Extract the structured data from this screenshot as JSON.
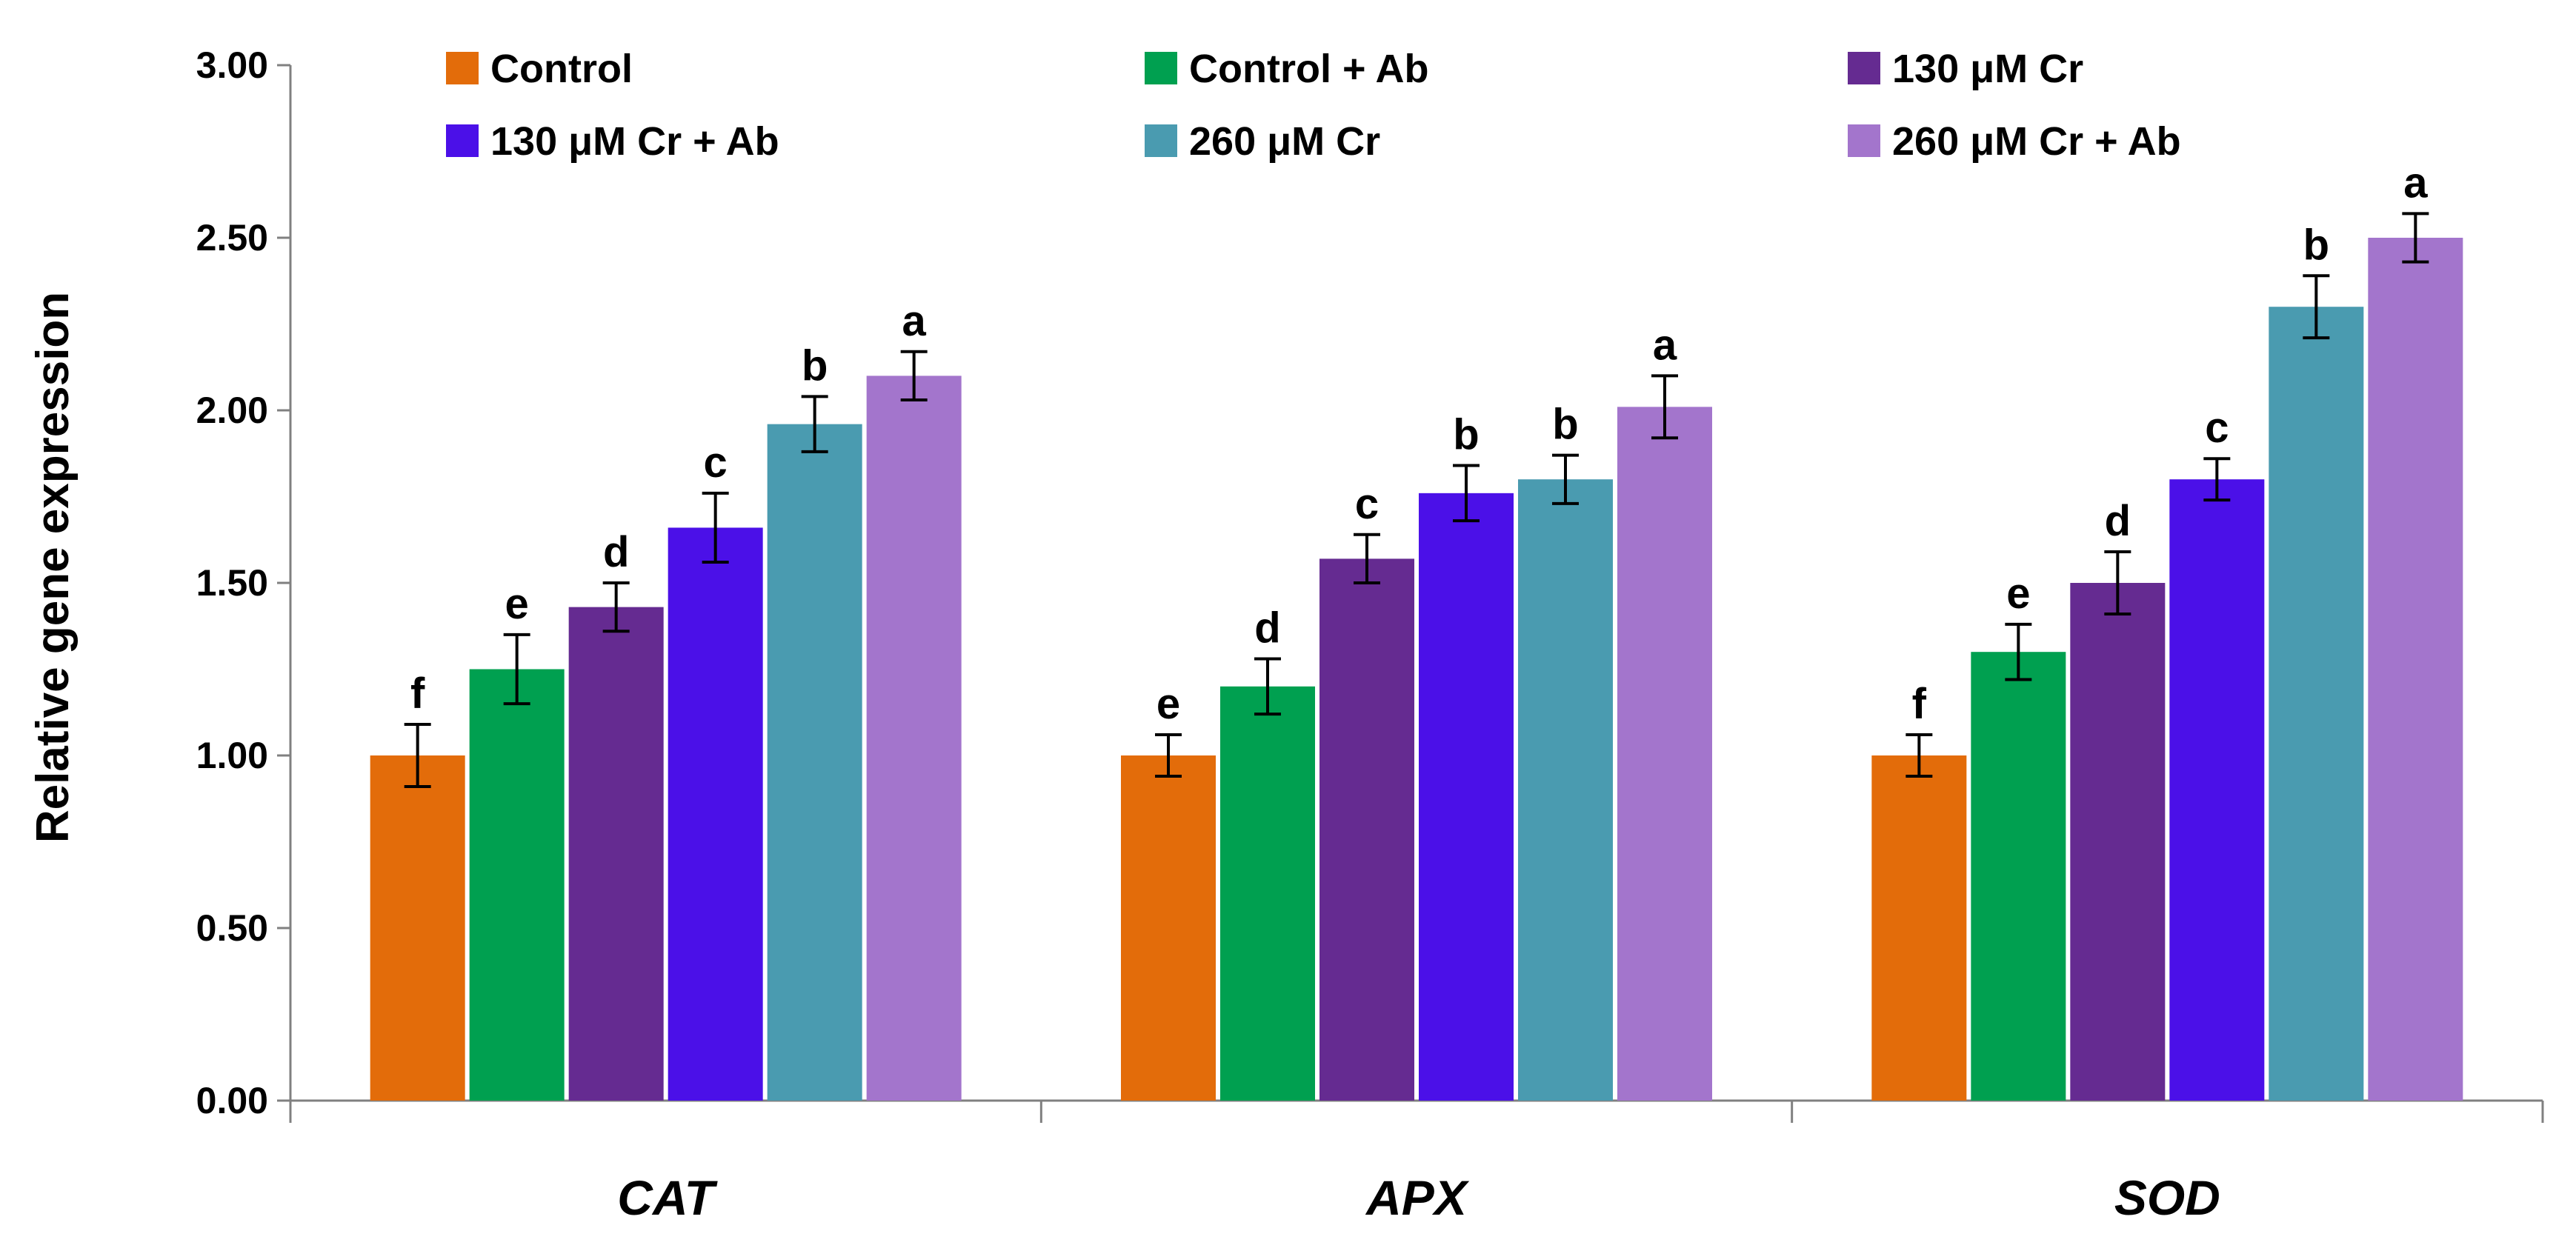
{
  "chart_data": {
    "type": "bar",
    "title": "",
    "xlabel": "",
    "ylabel": "Relative gene expression",
    "ylim": [
      0,
      3
    ],
    "yticks": [
      "0.00",
      "0.50",
      "1.00",
      "1.50",
      "2.00",
      "2.50",
      "3.00"
    ],
    "grid": false,
    "legend_position": "top",
    "categories": [
      "CAT",
      "APX",
      "SOD"
    ],
    "series": [
      {
        "name": "Control",
        "color": "#E36C0A",
        "values": [
          1.0,
          1.0,
          1.0
        ],
        "errors": [
          0.09,
          0.06,
          0.06
        ],
        "letters": [
          "f",
          "e",
          "f"
        ]
      },
      {
        "name": "Control + Ab",
        "color": "#00A050",
        "values": [
          1.25,
          1.2,
          1.3
        ],
        "errors": [
          0.1,
          0.08,
          0.08
        ],
        "letters": [
          "e",
          "d",
          "e"
        ]
      },
      {
        "name": "130 μM Cr",
        "color": "#652B91",
        "values": [
          1.43,
          1.57,
          1.5
        ],
        "errors": [
          0.07,
          0.07,
          0.09
        ],
        "letters": [
          "d",
          "c",
          "d"
        ]
      },
      {
        "name": "130 μM Cr + Ab",
        "color": "#4B10E8",
        "values": [
          1.66,
          1.76,
          1.8
        ],
        "errors": [
          0.1,
          0.08,
          0.06
        ],
        "letters": [
          "c",
          "b",
          "c"
        ]
      },
      {
        "name": "260 μM Cr",
        "color": "#4A9BB0",
        "values": [
          1.96,
          1.8,
          2.3
        ],
        "errors": [
          0.08,
          0.07,
          0.09
        ],
        "letters": [
          "b",
          "b",
          "b"
        ]
      },
      {
        "name": "260 μM Cr + Ab",
        "color": "#A375CC",
        "values": [
          2.1,
          2.01,
          2.5
        ],
        "errors": [
          0.07,
          0.09,
          0.07
        ],
        "letters": [
          "a",
          "a",
          "a"
        ]
      }
    ]
  }
}
